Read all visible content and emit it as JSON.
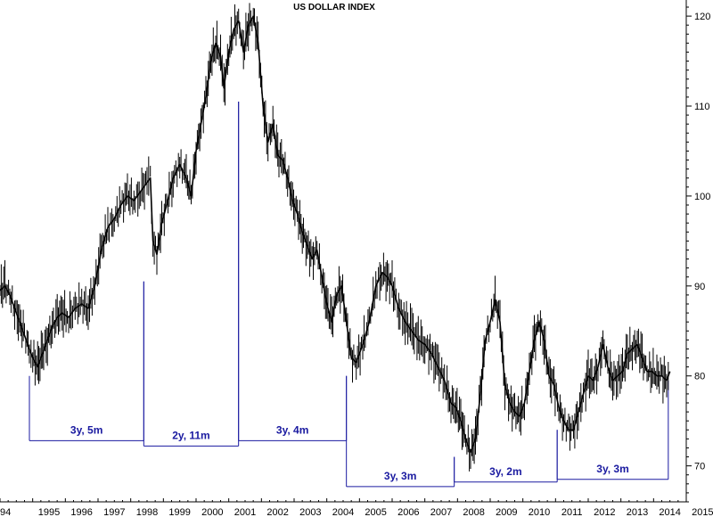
{
  "chart_data": {
    "type": "line",
    "title": "US DOLLAR INDEX",
    "xlabel": "",
    "ylabel": "",
    "ylim": [
      66,
      121
    ],
    "xlim": [
      1994.0,
      2015.0
    ],
    "y_ticks": [
      "70",
      "80",
      "90",
      "100",
      "110",
      "120"
    ],
    "x_ticks": [
      "94",
      "1995",
      "1996",
      "1997",
      "1998",
      "1999",
      "2000",
      "2001",
      "2002",
      "2003",
      "2004",
      "2005",
      "2006",
      "2007",
      "2008",
      "2009",
      "2010",
      "2011",
      "2012",
      "2013",
      "2014",
      "2015"
    ],
    "grid": false,
    "series": [
      {
        "x": [
          1994.0,
          1994.15,
          1994.3,
          1994.45,
          1994.6,
          1994.75,
          1994.9,
          1995.0,
          1995.15,
          1995.3,
          1995.45,
          1995.6,
          1995.75,
          1995.9,
          1996.1,
          1996.3,
          1996.5,
          1996.7,
          1996.9,
          1997.1,
          1997.3,
          1997.5,
          1997.7,
          1997.9,
          1998.1,
          1998.3,
          1998.5,
          1998.6,
          1998.68,
          1998.8,
          1998.95,
          1999.1,
          1999.3,
          1999.5,
          1999.7,
          1999.85,
          2000.0,
          2000.15,
          2000.3,
          2000.45,
          2000.6,
          2000.75,
          2000.85,
          2001.0,
          2001.15,
          2001.3,
          2001.45,
          2001.6,
          2001.75,
          2001.9,
          2002.05,
          2002.2,
          2002.35,
          2002.5,
          2002.65,
          2002.8,
          2002.95,
          2003.1,
          2003.25,
          2003.4,
          2003.55,
          2003.7,
          2003.85,
          2004.0,
          2004.15,
          2004.3,
          2004.45,
          2004.6,
          2004.75,
          2004.9,
          2005.1,
          2005.3,
          2005.5,
          2005.7,
          2005.85,
          2006.0,
          2006.2,
          2006.4,
          2006.6,
          2006.8,
          2007.0,
          2007.2,
          2007.4,
          2007.6,
          2007.8,
          2007.95,
          2008.1,
          2008.25,
          2008.4,
          2008.55,
          2008.7,
          2008.85,
          2009.0,
          2009.15,
          2009.3,
          2009.45,
          2009.6,
          2009.75,
          2009.9,
          2010.05,
          2010.2,
          2010.35,
          2010.5,
          2010.65,
          2010.8,
          2010.95,
          2011.1,
          2011.25,
          2011.4,
          2011.55,
          2011.7,
          2011.85,
          2012.0,
          2012.15,
          2012.3,
          2012.45,
          2012.6,
          2012.75,
          2012.9,
          2013.05,
          2013.2,
          2013.35,
          2013.5,
          2013.65,
          2013.8,
          2013.95,
          2014.1,
          2014.25,
          2014.4,
          2014.5
        ],
        "values": [
          89.5,
          90.0,
          89.0,
          87.5,
          86.0,
          84.5,
          83.0,
          82.0,
          81.0,
          82.5,
          84.0,
          85.5,
          86.5,
          87.0,
          86.5,
          87.5,
          88.0,
          87.5,
          90.0,
          94.0,
          96.5,
          97.5,
          99.0,
          100.0,
          99.5,
          100.5,
          101.5,
          102.0,
          95.0,
          93.5,
          97.0,
          99.0,
          102.0,
          103.5,
          102.0,
          100.0,
          105.0,
          108.0,
          111.0,
          115.0,
          117.0,
          115.5,
          112.0,
          116.0,
          118.5,
          119.5,
          116.0,
          119.0,
          120.0,
          117.0,
          110.0,
          106.0,
          108.0,
          104.5,
          104.0,
          102.0,
          99.5,
          98.0,
          96.0,
          94.5,
          93.0,
          94.0,
          91.0,
          88.0,
          86.0,
          89.0,
          90.0,
          86.0,
          82.0,
          81.5,
          83.5,
          86.0,
          90.0,
          91.5,
          91.0,
          90.0,
          87.5,
          86.0,
          85.0,
          84.0,
          83.5,
          82.5,
          81.0,
          79.5,
          77.0,
          76.5,
          75.0,
          73.0,
          71.5,
          73.0,
          78.0,
          84.0,
          86.0,
          88.5,
          86.0,
          79.0,
          77.0,
          76.0,
          75.5,
          77.0,
          80.5,
          84.0,
          86.0,
          84.0,
          80.0,
          79.0,
          76.5,
          75.0,
          74.0,
          74.0,
          76.0,
          78.0,
          80.0,
          79.5,
          81.0,
          83.5,
          81.0,
          79.5,
          80.0,
          80.5,
          82.5,
          83.0,
          83.5,
          82.0,
          80.5,
          80.5,
          80.0,
          80.0,
          79.5,
          80.5
        ]
      }
    ],
    "annotations": [
      {
        "label": "3y, 5m",
        "x_start": 1994.9,
        "x_end": 1998.4,
        "y_start": 80.0,
        "y_end": 90.5,
        "y_line": 72.8
      },
      {
        "label": "2y, 11m",
        "x_start": 1998.4,
        "x_end": 2001.3,
        "y_start": 90.5,
        "y_end": 110.5,
        "y_line": 72.2
      },
      {
        "label": "3y, 4m",
        "x_start": 2001.3,
        "x_end": 2004.6,
        "y_start": 110.5,
        "y_end": 80.0,
        "y_line": 72.8
      },
      {
        "label": "3y, 3m",
        "x_start": 2004.6,
        "x_end": 2007.9,
        "y_start": 80.0,
        "y_end": 71.0,
        "y_line": 67.7
      },
      {
        "label": "3y, 2m",
        "x_start": 2007.9,
        "x_end": 2011.05,
        "y_start": 71.0,
        "y_end": 74.0,
        "y_line": 68.2
      },
      {
        "label": "3y, 3m",
        "x_start": 2011.05,
        "x_end": 2014.45,
        "y_start": 74.0,
        "y_end": 79.5,
        "y_line": 68.5
      }
    ],
    "colors": {
      "price": "#000000",
      "annotation": "#1a1aa0",
      "axis": "#000000"
    }
  }
}
